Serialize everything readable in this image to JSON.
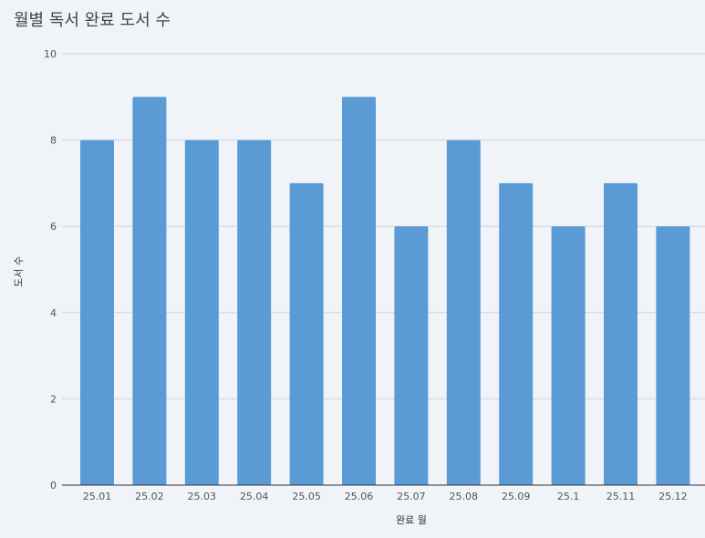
{
  "chart_data": {
    "type": "bar",
    "title": "월별 독서 완료 도서 수",
    "xlabel": "완료 월",
    "ylabel": "도서 수",
    "categories": [
      "25.01",
      "25.02",
      "25.03",
      "25.04",
      "25.05",
      "25.06",
      "25.07",
      "25.08",
      "25.09",
      "25.1",
      "25.11",
      "25.12"
    ],
    "values": [
      8,
      9,
      8,
      8,
      7,
      9,
      6,
      8,
      7,
      6,
      7,
      6
    ],
    "ylim": [
      0,
      10
    ],
    "yticks": [
      "0",
      "2",
      "4",
      "6",
      "8",
      "10"
    ],
    "grid": true,
    "bar_color": "#5b9bd5"
  }
}
